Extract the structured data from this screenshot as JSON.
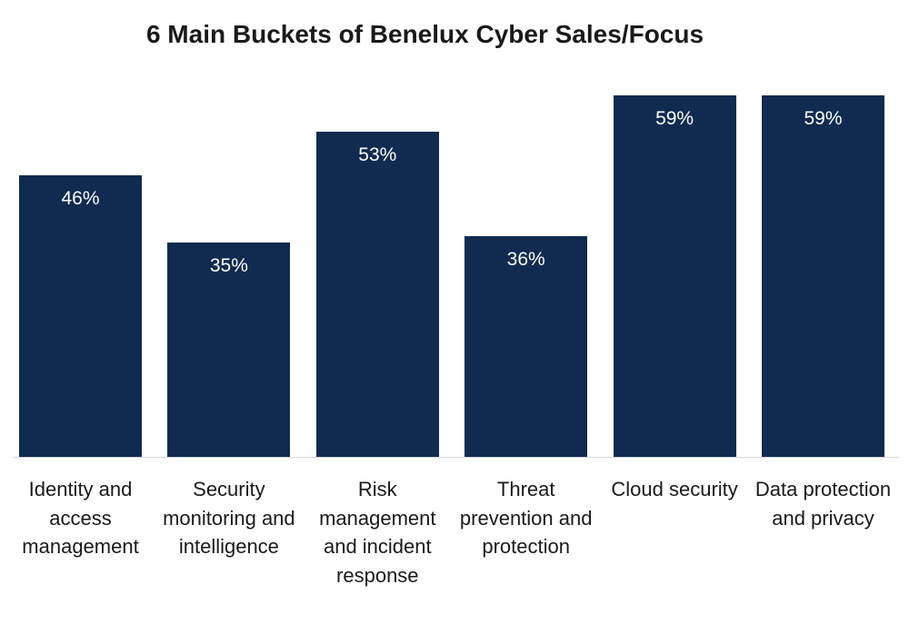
{
  "chart_data": {
    "type": "bar",
    "title": "6 Main Buckets of Benelux Cyber Sales/Focus",
    "categories": [
      "Identity and access management",
      "Security monitoring and intelligence",
      "Risk management and incident response",
      "Threat prevention and protection",
      "Cloud security",
      "Data protection and privacy"
    ],
    "values": [
      46,
      35,
      53,
      36,
      59,
      59
    ],
    "value_labels": [
      "46%",
      "35%",
      "53%",
      "36%",
      "59%",
      "59%"
    ],
    "color": "#112b50"
  }
}
